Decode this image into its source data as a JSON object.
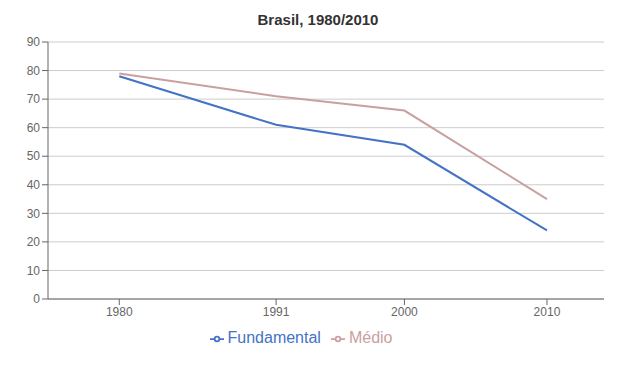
{
  "chart_data": {
    "type": "line",
    "title": "Brasil, 1980/2010",
    "x": [
      1980,
      1991,
      2000,
      2010
    ],
    "series": [
      {
        "name": "Fundamental",
        "color": "#4472C4",
        "values": [
          78,
          61,
          54,
          24
        ]
      },
      {
        "name": "Médio",
        "color": "#C9A0A0",
        "values": [
          79,
          71,
          66,
          35
        ]
      }
    ],
    "xlim": [
      1975,
      2014
    ],
    "xticks": [
      1980,
      1991,
      2000,
      2010
    ],
    "ylim": [
      0,
      90
    ],
    "yticks": [
      0,
      10,
      20,
      30,
      40,
      50,
      60,
      70,
      80,
      90
    ],
    "grid": "y",
    "legend": "bottom"
  }
}
